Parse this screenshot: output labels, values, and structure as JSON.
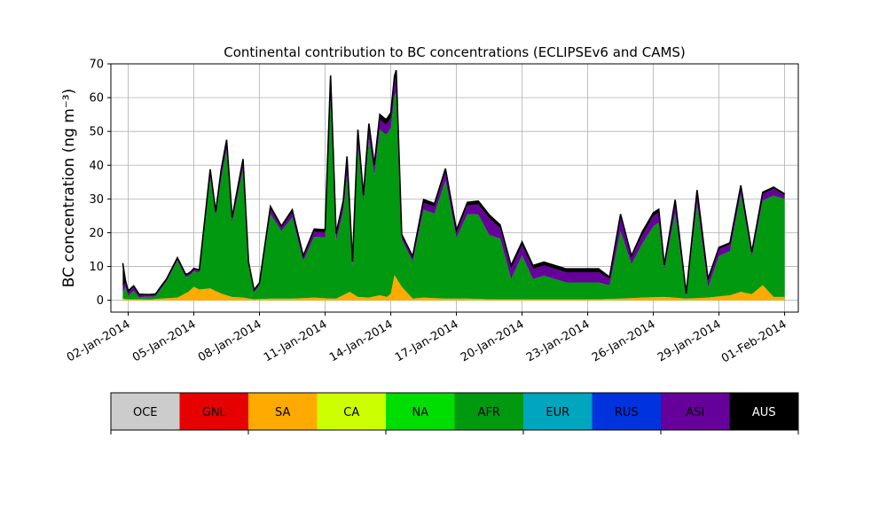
{
  "chart_data": {
    "type": "area",
    "title": "Continental contribution to BC concentrations (ECLIPSEv6 and CAMS)",
    "ylabel": "BC concentration (ng m⁻³)",
    "xlabel": "",
    "ylim": [
      -3.5,
      70
    ],
    "xlim": [
      "2014-01-01T05:00",
      "2014-02-01T15:00"
    ],
    "yticks": [
      0,
      10,
      20,
      30,
      40,
      50,
      60,
      70
    ],
    "xticks": [
      {
        "date": "2014-01-02",
        "label": "02-Jan-2014"
      },
      {
        "date": "2014-01-05",
        "label": "05-Jan-2014"
      },
      {
        "date": "2014-01-08",
        "label": "08-Jan-2014"
      },
      {
        "date": "2014-01-11",
        "label": "11-Jan-2014"
      },
      {
        "date": "2014-01-14",
        "label": "14-Jan-2014"
      },
      {
        "date": "2014-01-17",
        "label": "17-Jan-2014"
      },
      {
        "date": "2014-01-20",
        "label": "20-Jan-2014"
      },
      {
        "date": "2014-01-23",
        "label": "23-Jan-2014"
      },
      {
        "date": "2014-01-26",
        "label": "26-Jan-2014"
      },
      {
        "date": "2014-01-29",
        "label": "29-Jan-2014"
      },
      {
        "date": "2014-02-01",
        "label": "01-Feb-2014"
      }
    ],
    "grid": true,
    "legend": [
      {
        "name": "OCE",
        "color": "#cccccc",
        "text_color": "#000000"
      },
      {
        "name": "GNL",
        "color": "#e60000",
        "text_color": "#000000"
      },
      {
        "name": "SA",
        "color": "#ffaa00",
        "text_color": "#000000"
      },
      {
        "name": "CA",
        "color": "#ccff00",
        "text_color": "#000000"
      },
      {
        "name": "NA",
        "color": "#00dd00",
        "text_color": "#000000"
      },
      {
        "name": "AFR",
        "color": "#00990f",
        "text_color": "#000000"
      },
      {
        "name": "EUR",
        "color": "#00a5be",
        "text_color": "#000000"
      },
      {
        "name": "RUS",
        "color": "#0033dd",
        "text_color": "#000000"
      },
      {
        "name": "ASI",
        "color": "#66009a",
        "text_color": "#000000"
      },
      {
        "name": "AUS",
        "color": "#000000",
        "text_color": "#ffffff"
      }
    ],
    "legend_placement": "bottom",
    "series": [
      {
        "name": "SA",
        "color": "#ffaa00",
        "x": [
          "2014-01-01T18:00",
          "2014-01-02T00:00",
          "2014-01-02T12:00",
          "2014-01-03T00:00",
          "2014-01-03T12:00",
          "2014-01-04T06:00",
          "2014-01-04T18:00",
          "2014-01-05T00:00",
          "2014-01-05T06:00",
          "2014-01-05T18:00",
          "2014-01-06T06:00",
          "2014-01-06T18:00",
          "2014-01-07T06:00",
          "2014-01-07T18:00",
          "2014-01-08T12:00",
          "2014-01-09T12:00",
          "2014-01-10T12:00",
          "2014-01-11T00:00",
          "2014-01-11T12:00",
          "2014-01-12T03:00",
          "2014-01-12T12:00",
          "2014-01-13T00:00",
          "2014-01-13T12:00",
          "2014-01-13T20:00",
          "2014-01-14T00:00",
          "2014-01-14T04:00",
          "2014-01-14T12:00",
          "2014-01-15T00:00",
          "2014-01-15T12:00",
          "2014-01-16T12:00",
          "2014-01-17T12:00",
          "2014-01-18T12:00",
          "2014-01-19T12:00",
          "2014-01-20T12:00",
          "2014-01-21T12:00",
          "2014-01-22T12:00",
          "2014-01-23T12:00",
          "2014-01-24T12:00",
          "2014-01-25T12:00",
          "2014-01-26T12:00",
          "2014-01-27T12:00",
          "2014-01-28T12:00",
          "2014-01-29T12:00",
          "2014-01-30T00:00",
          "2014-01-30T12:00",
          "2014-01-31T00:00",
          "2014-01-31T12:00",
          "2014-02-01T00:00"
        ],
        "values": [
          0.5,
          0.3,
          0.3,
          0.2,
          0.5,
          0.8,
          2.5,
          4.0,
          3.2,
          3.5,
          2.0,
          1.0,
          0.8,
          0.3,
          0.5,
          0.5,
          0.8,
          0.6,
          0.5,
          2.5,
          1.0,
          0.8,
          1.5,
          1.0,
          2.0,
          7.5,
          4.0,
          0.5,
          0.8,
          0.5,
          0.5,
          0.3,
          0.3,
          0.3,
          0.3,
          0.3,
          0.3,
          0.5,
          0.8,
          1.0,
          0.5,
          0.8,
          1.5,
          2.5,
          1.8,
          4.5,
          1.0,
          1.0
        ]
      },
      {
        "name": "AFR",
        "color": "#00990f",
        "x": [
          "2014-01-01T18:00",
          "2014-01-01T21:00",
          "2014-01-02T00:00",
          "2014-01-02T06:00",
          "2014-01-02T12:00",
          "2014-01-02T18:00",
          "2014-01-03T06:00",
          "2014-01-03T18:00",
          "2014-01-04T06:00",
          "2014-01-04T15:00",
          "2014-01-04T21:00",
          "2014-01-05T06:00",
          "2014-01-05T18:00",
          "2014-01-06T00:00",
          "2014-01-06T06:00",
          "2014-01-06T12:00",
          "2014-01-06T18:00",
          "2014-01-07T06:00",
          "2014-01-07T12:00",
          "2014-01-07T18:00",
          "2014-01-08T00:00",
          "2014-01-08T12:00",
          "2014-01-09T00:00",
          "2014-01-09T12:00",
          "2014-01-10T00:00",
          "2014-01-10T12:00",
          "2014-01-11T00:00",
          "2014-01-11T06:00",
          "2014-01-11T12:00",
          "2014-01-11T20:00",
          "2014-01-12T00:00",
          "2014-01-12T06:00",
          "2014-01-12T12:00",
          "2014-01-12T18:00",
          "2014-01-13T00:00",
          "2014-01-13T06:00",
          "2014-01-13T12:00",
          "2014-01-13T18:00",
          "2014-01-14T00:00",
          "2014-01-14T06:00",
          "2014-01-14T12:00",
          "2014-01-15T00:00",
          "2014-01-15T12:00",
          "2014-01-16T00:00",
          "2014-01-16T12:00",
          "2014-01-17T00:00",
          "2014-01-17T12:00",
          "2014-01-18T00:00",
          "2014-01-18T12:00",
          "2014-01-19T00:00",
          "2014-01-19T12:00",
          "2014-01-20T00:00",
          "2014-01-20T12:00",
          "2014-01-21T00:00",
          "2014-01-21T12:00",
          "2014-01-22T00:00",
          "2014-01-22T12:00",
          "2014-01-23T00:00",
          "2014-01-23T12:00",
          "2014-01-24T00:00",
          "2014-01-24T12:00",
          "2014-01-25T00:00",
          "2014-01-25T12:00",
          "2014-01-26T00:00",
          "2014-01-26T06:00",
          "2014-01-26T12:00",
          "2014-01-27T00:00",
          "2014-01-27T12:00",
          "2014-01-28T00:00",
          "2014-01-28T12:00",
          "2014-01-29T00:00",
          "2014-01-29T12:00",
          "2014-01-30T00:00",
          "2014-01-30T12:00",
          "2014-01-31T00:00",
          "2014-01-31T12:00",
          "2014-02-01T00:00"
        ],
        "values": [
          2,
          3.5,
          1,
          2.5,
          0.5,
          0.8,
          0.8,
          5,
          11,
          4.8,
          4.5,
          5.0,
          33,
          22,
          34,
          43,
          22,
          38,
          10,
          2,
          4,
          25,
          20,
          24,
          11,
          18,
          18,
          59,
          17,
          25,
          35,
          8,
          45,
          28,
          47,
          36,
          49,
          48,
          49,
          55,
          14,
          11,
          26,
          25,
          35,
          18,
          25,
          25,
          19,
          18,
          6,
          13,
          6,
          7,
          6,
          5,
          5,
          5,
          5,
          4,
          20,
          10,
          16,
          21,
          22,
          8,
          25,
          0.5,
          28,
          3,
          12,
          13,
          29,
          11,
          25,
          30,
          29
        ]
      },
      {
        "name": "ASI",
        "color": "#66009a",
        "x": [
          "2014-01-01T18:00",
          "2014-01-01T21:00",
          "2014-01-02T00:00",
          "2014-01-02T06:00",
          "2014-01-02T12:00",
          "2014-01-02T18:00",
          "2014-01-03T06:00",
          "2014-01-03T18:00",
          "2014-01-04T06:00",
          "2014-01-04T15:00",
          "2014-01-04T21:00",
          "2014-01-05T06:00",
          "2014-01-05T18:00",
          "2014-01-06T00:00",
          "2014-01-06T06:00",
          "2014-01-06T12:00",
          "2014-01-06T18:00",
          "2014-01-07T06:00",
          "2014-01-07T12:00",
          "2014-01-07T18:00",
          "2014-01-08T00:00",
          "2014-01-08T12:00",
          "2014-01-09T00:00",
          "2014-01-09T12:00",
          "2014-01-10T00:00",
          "2014-01-10T12:00",
          "2014-01-11T00:00",
          "2014-01-11T06:00",
          "2014-01-11T12:00",
          "2014-01-11T20:00",
          "2014-01-12T00:00",
          "2014-01-12T06:00",
          "2014-01-12T12:00",
          "2014-01-12T18:00",
          "2014-01-13T00:00",
          "2014-01-13T06:00",
          "2014-01-13T12:00",
          "2014-01-13T18:00",
          "2014-01-14T00:00",
          "2014-01-14T06:00",
          "2014-01-14T12:00",
          "2014-01-15T00:00",
          "2014-01-15T12:00",
          "2014-01-16T00:00",
          "2014-01-16T12:00",
          "2014-01-17T00:00",
          "2014-01-17T12:00",
          "2014-01-18T00:00",
          "2014-01-18T12:00",
          "2014-01-19T00:00",
          "2014-01-19T12:00",
          "2014-01-20T00:00",
          "2014-01-20T12:00",
          "2014-01-21T00:00",
          "2014-01-21T12:00",
          "2014-01-22T00:00",
          "2014-01-22T12:00",
          "2014-01-23T00:00",
          "2014-01-23T12:00",
          "2014-01-24T00:00",
          "2014-01-24T12:00",
          "2014-01-25T00:00",
          "2014-01-25T12:00",
          "2014-01-26T00:00",
          "2014-01-26T06:00",
          "2014-01-26T12:00",
          "2014-01-27T00:00",
          "2014-01-27T12:00",
          "2014-01-28T00:00",
          "2014-01-28T12:00",
          "2014-01-29T00:00",
          "2014-01-29T12:00",
          "2014-01-30T00:00",
          "2014-01-30T12:00",
          "2014-01-31T00:00",
          "2014-01-31T12:00",
          "2014-02-01T00:00"
        ],
        "values": [
          1.5,
          1.5,
          1,
          1,
          0.5,
          0.5,
          0.5,
          0.5,
          0.5,
          0.5,
          0.5,
          0.5,
          1.5,
          1,
          2,
          2,
          1,
          2,
          0.5,
          0.5,
          0.5,
          1.5,
          1,
          1.5,
          1,
          1.5,
          1.5,
          5,
          1.5,
          2,
          4,
          1,
          3,
          1.5,
          3,
          2,
          3,
          3,
          3,
          5,
          1,
          1,
          2,
          2,
          2.5,
          1.5,
          2.5,
          3,
          5,
          3,
          3,
          3,
          3,
          3,
          3,
          3,
          3,
          3,
          3,
          2,
          4,
          2,
          2.5,
          3,
          3,
          1,
          3,
          0.5,
          3,
          2,
          2,
          2,
          2,
          1,
          2,
          2,
          1
        ]
      },
      {
        "name": "AUS",
        "color": "#000000",
        "x": [
          "2014-01-01T18:00",
          "2014-01-01T21:00",
          "2014-01-02T00:00",
          "2014-01-02T06:00",
          "2014-01-02T12:00",
          "2014-01-02T18:00",
          "2014-01-03T06:00",
          "2014-01-03T18:00",
          "2014-01-04T06:00",
          "2014-01-04T15:00",
          "2014-01-04T21:00",
          "2014-01-05T06:00",
          "2014-01-05T18:00",
          "2014-01-06T00:00",
          "2014-01-06T06:00",
          "2014-01-06T12:00",
          "2014-01-06T18:00",
          "2014-01-07T06:00",
          "2014-01-07T12:00",
          "2014-01-07T18:00",
          "2014-01-08T00:00",
          "2014-01-08T12:00",
          "2014-01-09T00:00",
          "2014-01-09T12:00",
          "2014-01-10T00:00",
          "2014-01-10T12:00",
          "2014-01-11T00:00",
          "2014-01-11T06:00",
          "2014-01-11T12:00",
          "2014-01-11T20:00",
          "2014-01-12T00:00",
          "2014-01-12T06:00",
          "2014-01-12T12:00",
          "2014-01-12T18:00",
          "2014-01-13T00:00",
          "2014-01-13T06:00",
          "2014-01-13T12:00",
          "2014-01-13T18:00",
          "2014-01-14T00:00",
          "2014-01-14T06:00",
          "2014-01-14T12:00",
          "2014-01-15T00:00",
          "2014-01-15T12:00",
          "2014-01-16T00:00",
          "2014-01-16T12:00",
          "2014-01-17T00:00",
          "2014-01-17T12:00",
          "2014-01-18T00:00",
          "2014-01-18T12:00",
          "2014-01-19T00:00",
          "2014-01-19T12:00",
          "2014-01-20T00:00",
          "2014-01-20T12:00",
          "2014-01-21T00:00",
          "2014-01-21T12:00",
          "2014-01-22T00:00",
          "2014-01-22T12:00",
          "2014-01-23T00:00",
          "2014-01-23T12:00",
          "2014-01-24T00:00",
          "2014-01-24T12:00",
          "2014-01-25T00:00",
          "2014-01-25T12:00",
          "2014-01-26T00:00",
          "2014-01-26T06:00",
          "2014-01-26T12:00",
          "2014-01-27T00:00",
          "2014-01-27T12:00",
          "2014-01-28T00:00",
          "2014-01-28T12:00",
          "2014-01-29T00:00",
          "2014-01-29T12:00",
          "2014-01-30T00:00",
          "2014-01-30T12:00",
          "2014-01-31T00:00",
          "2014-01-31T12:00",
          "2014-02-01T00:00"
        ],
        "values": [
          7,
          0.5,
          0.5,
          0.5,
          0.5,
          0.2,
          0.2,
          0.2,
          0.3,
          0.3,
          0.3,
          0.3,
          0.8,
          0.5,
          0.8,
          1,
          0.5,
          1,
          0.3,
          0.3,
          0.3,
          0.8,
          0.5,
          0.8,
          0.5,
          0.8,
          0.8,
          2,
          0.8,
          1,
          1.5,
          0.5,
          1.5,
          0.8,
          1.5,
          1,
          1.5,
          1.5,
          1.5,
          1.5,
          0.5,
          0.5,
          1,
          1,
          1,
          0.8,
          1,
          1,
          1,
          1,
          1,
          1,
          1,
          1,
          1,
          1,
          1,
          1,
          1,
          0.5,
          1,
          0.5,
          1,
          1,
          1,
          0.5,
          1,
          0.5,
          1,
          0.5,
          0.5,
          0.5,
          0.5,
          0.5,
          0.5,
          0.5,
          0.5
        ]
      }
    ]
  }
}
